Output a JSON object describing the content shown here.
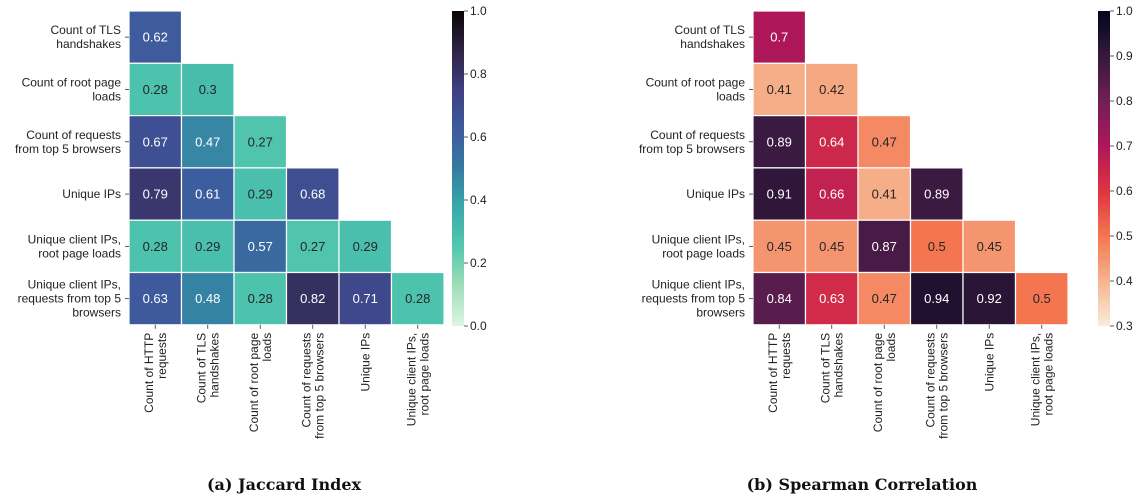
{
  "chart_data": [
    {
      "type": "heatmap",
      "caption": "(a) Jaccard Index",
      "row_labels": [
        "Count of TLS handshakes",
        "Count of root page loads",
        "Count of requests from top 5 browsers",
        "Unique IPs",
        "Unique client IPs, root page loads",
        "Unique client IPs, requests from top 5 browsers"
      ],
      "col_labels": [
        "Count of HTTP requests",
        "Count of TLS handshakes",
        "Count of root page loads",
        "Count of requests from top 5 browsers",
        "Unique IPs",
        "Unique client IPs, root page loads"
      ],
      "values": [
        [
          0.62
        ],
        [
          0.28,
          0.3
        ],
        [
          0.67,
          0.47,
          0.27
        ],
        [
          0.79,
          0.61,
          0.29,
          0.68
        ],
        [
          0.28,
          0.29,
          0.57,
          0.27,
          0.29
        ],
        [
          0.63,
          0.48,
          0.28,
          0.82,
          0.71,
          0.28
        ]
      ],
      "value_labels": [
        [
          "0.62"
        ],
        [
          "0.28",
          "0.3"
        ],
        [
          "0.67",
          "0.47",
          "0.27"
        ],
        [
          "0.79",
          "0.61",
          "0.29",
          "0.68"
        ],
        [
          "0.28",
          "0.29",
          "0.57",
          "0.27",
          "0.29"
        ],
        [
          "0.63",
          "0.48",
          "0.28",
          "0.82",
          "0.71",
          "0.28"
        ]
      ],
      "colormap": "mako_r",
      "vmin": 0.0,
      "vmax": 1.0,
      "colorbar_ticks": [
        "0.0",
        "0.2",
        "0.4",
        "0.6",
        "0.8",
        "1.0"
      ]
    },
    {
      "type": "heatmap",
      "caption": "(b) Spearman Correlation",
      "row_labels": [
        "Count of TLS handshakes",
        "Count of root page loads",
        "Count of requests from top 5 browsers",
        "Unique IPs",
        "Unique client IPs, root page loads",
        "Unique client IPs, requests from top 5 browsers"
      ],
      "col_labels": [
        "Count of HTTP requests",
        "Count of TLS handshakes",
        "Count of root page loads",
        "Count of requests from top 5 browsers",
        "Unique IPs",
        "Unique client IPs, root page loads"
      ],
      "values": [
        [
          0.7
        ],
        [
          0.41,
          0.42
        ],
        [
          0.89,
          0.64,
          0.47
        ],
        [
          0.91,
          0.66,
          0.41,
          0.89
        ],
        [
          0.45,
          0.45,
          0.87,
          0.5,
          0.45
        ],
        [
          0.84,
          0.63,
          0.47,
          0.94,
          0.92,
          0.5
        ]
      ],
      "value_labels": [
        [
          "0.7"
        ],
        [
          "0.41",
          "0.42"
        ],
        [
          "0.89",
          "0.64",
          "0.47"
        ],
        [
          "0.91",
          "0.66",
          "0.41",
          "0.89"
        ],
        [
          "0.45",
          "0.45",
          "0.87",
          "0.5",
          "0.45"
        ],
        [
          "0.84",
          "0.63",
          "0.47",
          "0.94",
          "0.92",
          "0.5"
        ]
      ],
      "colormap": "rocket_r",
      "vmin": 0.3,
      "vmax": 1.0,
      "colorbar_ticks": [
        "0.3",
        "0.4",
        "0.5",
        "0.6",
        "0.7",
        "0.8",
        "0.9",
        "1.0"
      ]
    }
  ],
  "row_label_lines": [
    [
      "Count of TLS",
      "handshakes"
    ],
    [
      "Count of root page",
      "loads"
    ],
    [
      "Count of requests",
      "from top 5 browsers"
    ],
    [
      "Unique IPs"
    ],
    [
      "Unique client IPs,",
      "root page loads"
    ],
    [
      "Unique client IPs,",
      "requests from top 5",
      "browsers"
    ]
  ],
  "col_label_lines": [
    [
      "Count of HTTP",
      "requests"
    ],
    [
      "Count of TLS",
      "handshakes"
    ],
    [
      "Count of root page",
      "loads"
    ],
    [
      "Count of requests",
      "from top 5 browsers"
    ],
    [
      "Unique IPs"
    ],
    [
      "Unique client IPs,",
      "root page loads"
    ]
  ],
  "colors": {
    "jaccard_stops": [
      "#def5e5",
      "#a0dfb9",
      "#54c9ad",
      "#38aaac",
      "#357ba2",
      "#3e5a9d",
      "#3f3f82",
      "#2e2444",
      "#0b0405"
    ],
    "spearman_stops": [
      "#faebdd",
      "#f6b48e",
      "#f37651",
      "#e13342",
      "#ad1759",
      "#701f57",
      "#35193e",
      "#03051a"
    ],
    "text_dark": "#262626",
    "text_light": "#ffffff"
  }
}
